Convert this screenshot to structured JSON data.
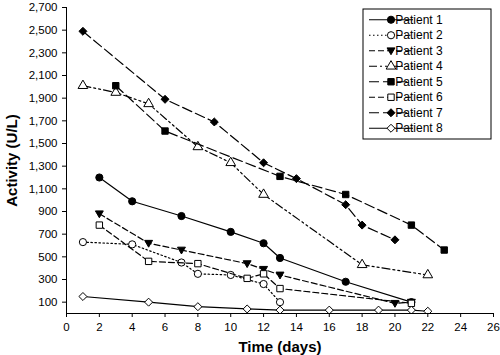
{
  "chart_data": {
    "type": "line",
    "x_label": "Time (days)",
    "y_label": "Activity (U/L)",
    "xlim": [
      0,
      26
    ],
    "xticks": [
      0,
      2,
      4,
      6,
      8,
      10,
      12,
      14,
      16,
      18,
      20,
      22,
      24,
      26
    ],
    "ylim": [
      0,
      2700
    ],
    "yticks": [
      100,
      300,
      500,
      700,
      900,
      {
        "value": 1100,
        "label": "1,100"
      },
      {
        "value": 1300,
        "label": "1,300"
      },
      {
        "value": 1500,
        "label": "1,500"
      },
      {
        "value": 1700,
        "label": "1,700"
      },
      {
        "value": 1900,
        "label": "1,900"
      },
      {
        "value": 2100,
        "label": "2,100"
      },
      {
        "value": 2300,
        "label": "2,300"
      },
      {
        "value": 2500,
        "label": "2,500"
      },
      {
        "value": 2700,
        "label": "2,700"
      }
    ],
    "grid": false,
    "legend": "top-right",
    "series": [
      {
        "name": "Patient 1",
        "color": "#000000",
        "marker": "circle",
        "line_style": "solid",
        "x": [
          2,
          4,
          7,
          10,
          12,
          13,
          17,
          21
        ],
        "values": [
          1200,
          990,
          860,
          720,
          620,
          490,
          280,
          100
        ]
      },
      {
        "name": "Patient 2",
        "color": "#000000",
        "marker": "circle-open",
        "line_style": "dotted",
        "x": [
          1,
          4,
          7,
          8,
          10,
          12,
          13
        ],
        "values": [
          630,
          610,
          450,
          350,
          340,
          260,
          100
        ]
      },
      {
        "name": "Patient 3",
        "color": "#000000",
        "marker": "triangle-down",
        "line_style": "dashed",
        "x": [
          2,
          5,
          7,
          11,
          12,
          13,
          20,
          21
        ],
        "values": [
          880,
          620,
          560,
          440,
          390,
          340,
          90,
          100
        ]
      },
      {
        "name": "Patient 4",
        "color": "#000000",
        "marker": "triangle-open",
        "line_style": "dashdotdot",
        "x": [
          1,
          3,
          5,
          8,
          10,
          12,
          18,
          22
        ],
        "values": [
          2010,
          1950,
          1850,
          1470,
          1330,
          1050,
          430,
          340
        ]
      },
      {
        "name": "Patient 5",
        "color": "#000000",
        "marker": "square",
        "line_style": "longdash",
        "x": [
          3,
          6,
          13,
          17,
          21,
          23
        ],
        "values": [
          2010,
          1610,
          1210,
          1050,
          780,
          560
        ]
      },
      {
        "name": "Patient 6",
        "color": "#000000",
        "marker": "square-open",
        "line_style": "dashed",
        "x": [
          2,
          5,
          8,
          11,
          12,
          13,
          21
        ],
        "values": [
          780,
          460,
          440,
          310,
          350,
          220,
          90
        ]
      },
      {
        "name": "Patient 7",
        "color": "#000000",
        "marker": "diamond",
        "line_style": "longdash",
        "x": [
          1,
          6,
          9,
          12,
          14,
          17,
          18,
          20
        ],
        "values": [
          2490,
          1890,
          1690,
          1330,
          1190,
          960,
          780,
          650
        ]
      },
      {
        "name": "Patient 8",
        "color": "#000000",
        "marker": "diamond-open",
        "line_style": "solid",
        "x": [
          1,
          5,
          8,
          11,
          13,
          16,
          19,
          21,
          22
        ],
        "values": [
          150,
          100,
          60,
          40,
          30,
          30,
          30,
          30,
          20
        ]
      }
    ]
  }
}
